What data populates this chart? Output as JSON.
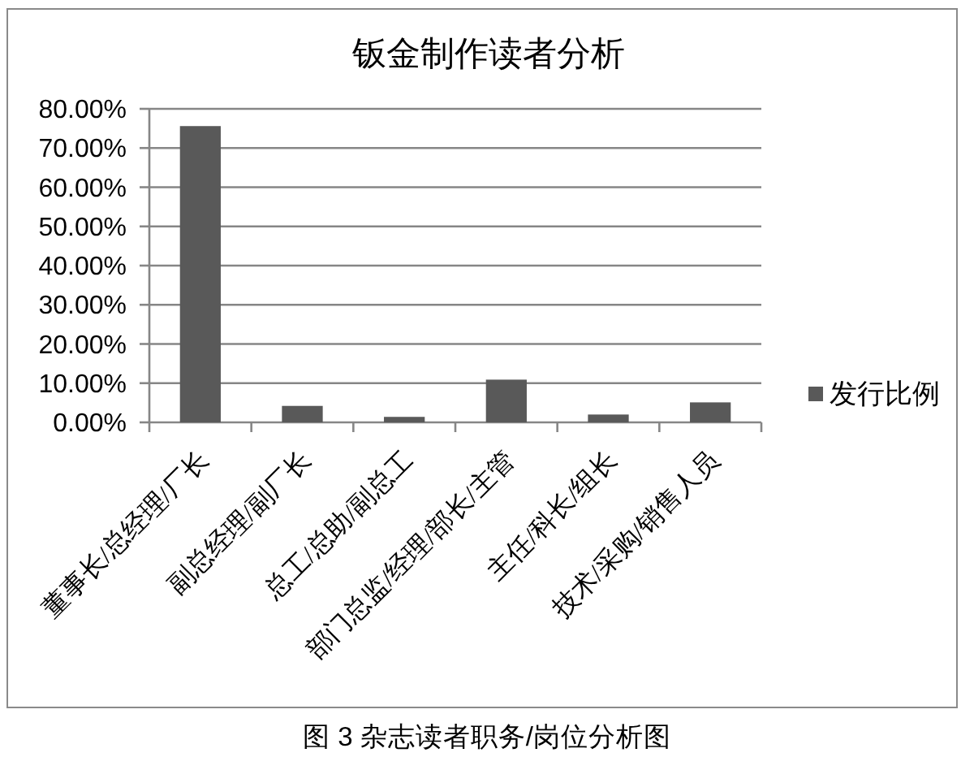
{
  "chart_data": {
    "type": "bar",
    "title": "钣金制作读者分析",
    "categories": [
      "董事长/总经理/厂长",
      "副总经理/副厂长",
      "总工/总助/副总工",
      "部门总监/经理/部长/主管",
      "主任/科长/组长",
      "技术/采购/销售人员"
    ],
    "series": [
      {
        "name": "发行比例",
        "color": "#595959",
        "values": [
          75.6,
          4.2,
          1.4,
          10.9,
          2.0,
          5.1
        ]
      }
    ],
    "ylim": [
      0,
      80
    ],
    "yticks": [
      {
        "value": 0,
        "label": "0.00%"
      },
      {
        "value": 10,
        "label": "10.00%"
      },
      {
        "value": 20,
        "label": "20.00%"
      },
      {
        "value": 30,
        "label": "30.00%"
      },
      {
        "value": 40,
        "label": "40.00%"
      },
      {
        "value": 50,
        "label": "50.00%"
      },
      {
        "value": 60,
        "label": "60.00%"
      },
      {
        "value": 70,
        "label": "70.00%"
      },
      {
        "value": 80,
        "label": "80.00%"
      }
    ],
    "grid": "y",
    "legend": "right",
    "annotations": [
      "图 3 杂志读者职务/岗位分析图"
    ]
  }
}
